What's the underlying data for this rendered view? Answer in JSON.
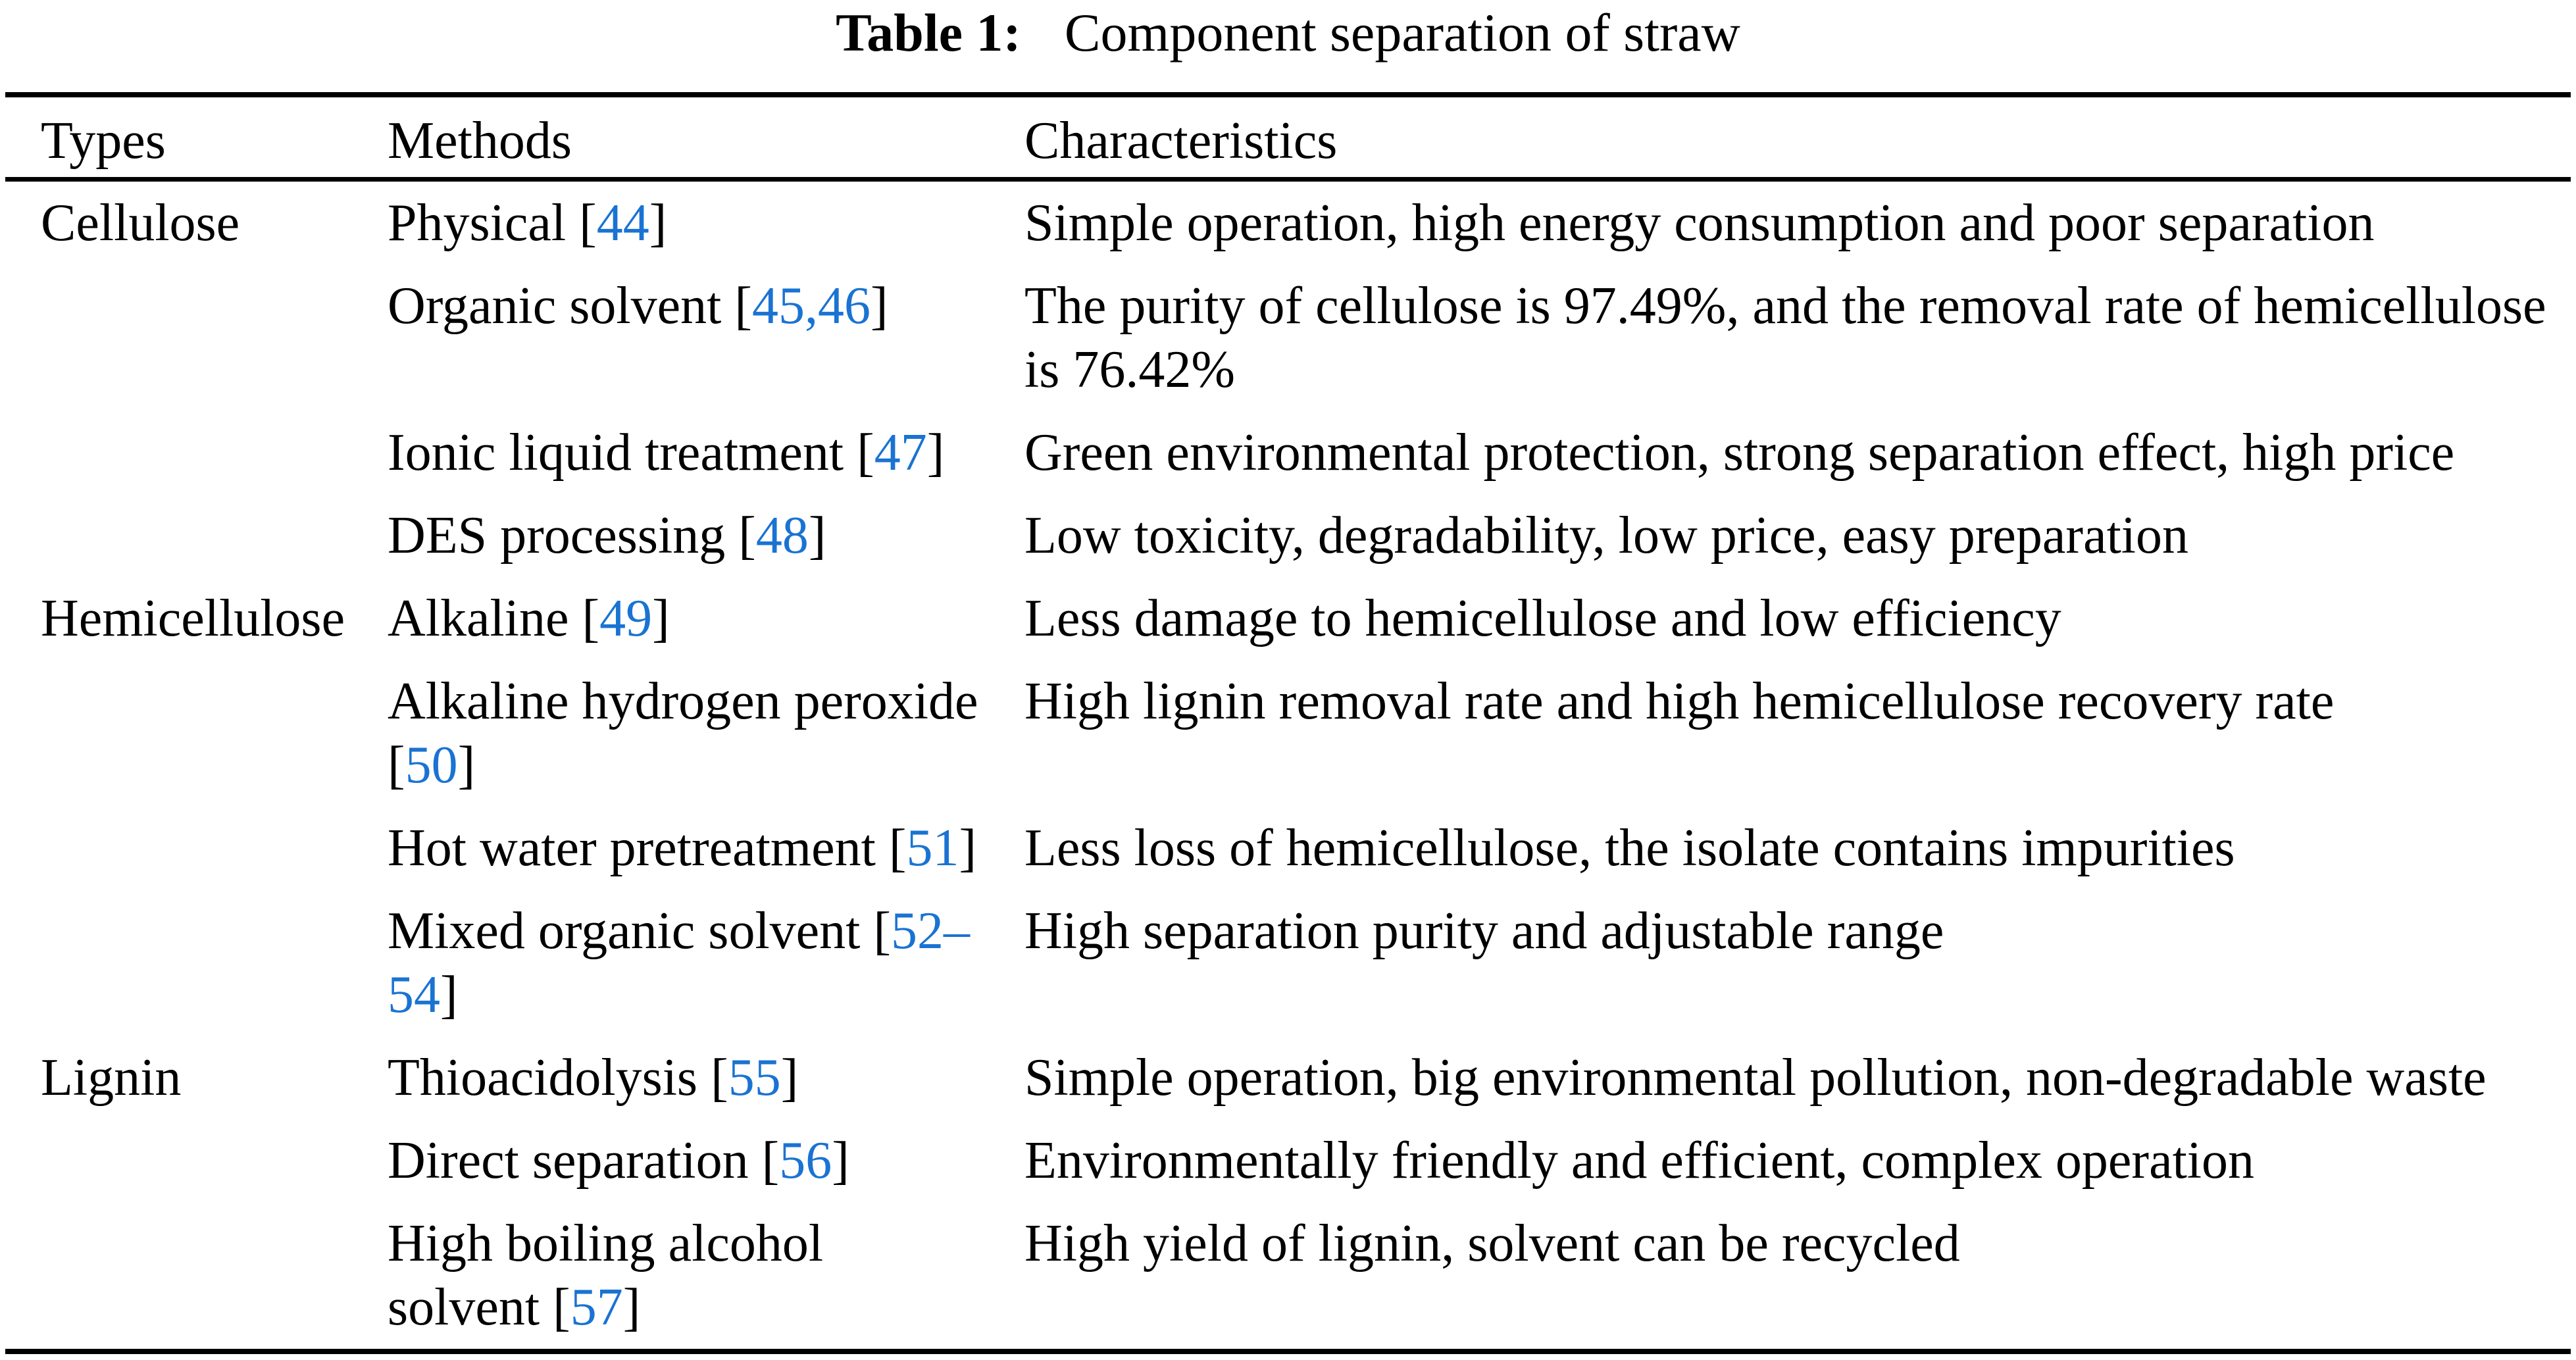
{
  "caption": {
    "label": "Table 1:",
    "title": "Component separation of straw"
  },
  "colors": {
    "citation_blue": "#1a73d2",
    "text": "#000000",
    "background": "#ffffff"
  },
  "method_citation_format": {
    "open": " [",
    "close": "]"
  },
  "table": {
    "columns": [
      "Types",
      "Methods",
      "Characteristics"
    ],
    "rows": [
      {
        "type": "Cellulose",
        "method": "Physical",
        "citation": "44",
        "characteristics": "Simple operation, high energy consumption and poor separation"
      },
      {
        "type": "",
        "method": "Organic solvent",
        "citation": "45,46",
        "characteristics": "The purity of cellulose is 97.49%, and the removal rate of hemicellulose is 76.42%"
      },
      {
        "type": "",
        "method": "Ionic liquid treatment",
        "citation": "47",
        "characteristics": "Green environmental protection, strong separation effect, high price"
      },
      {
        "type": "",
        "method": "DES processing",
        "citation": "48",
        "characteristics": "Low toxicity, degradability, low price, easy preparation"
      },
      {
        "type": "Hemicellulose",
        "method": "Alkaline",
        "citation": "49",
        "characteristics": "Less damage to hemicellulose and low efficiency"
      },
      {
        "type": "",
        "method": "Alkaline hydrogen peroxide",
        "citation": "50",
        "characteristics": "High lignin removal rate and high hemicellulose recovery rate"
      },
      {
        "type": "",
        "method": "Hot water pretreatment",
        "citation": "51",
        "characteristics": "Less loss of hemicellulose, the isolate contains impurities"
      },
      {
        "type": "",
        "method": "Mixed organic solvent",
        "citation": "52–54",
        "characteristics": "High separation purity and adjustable range"
      },
      {
        "type": "Lignin",
        "method": "Thioacidolysis",
        "citation": "55",
        "characteristics": "Simple operation, big environmental pollution, non-degradable waste"
      },
      {
        "type": "",
        "method": "Direct separation",
        "citation": "56",
        "characteristics": "Environmentally friendly and efficient, complex operation"
      },
      {
        "type": "",
        "method": "High boiling alcohol solvent",
        "citation": "57",
        "characteristics": "High yield of lignin, solvent can be recycled"
      }
    ]
  }
}
